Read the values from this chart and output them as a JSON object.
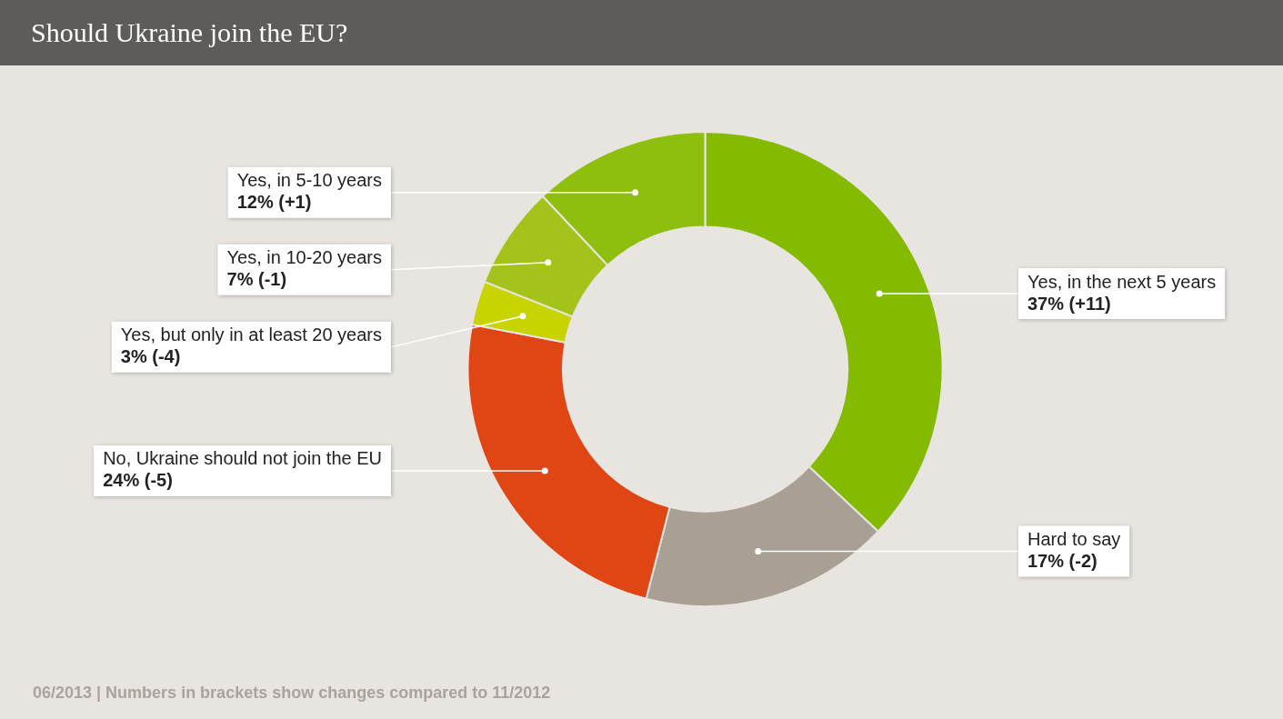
{
  "chart_data": {
    "type": "donut",
    "title": "Should Ukraine join the EU?",
    "categories": [
      "Yes, in the next 5 years",
      "Hard to say",
      "No, Ukraine should not join the EU",
      "Yes, but only in at least 20 years",
      "Yes, in 10-20 years",
      "Yes, in 5-10 years"
    ],
    "values": [
      37,
      17,
      24,
      3,
      7,
      12
    ],
    "colors": [
      "#84bb00",
      "#a89f95",
      "#e04514",
      "#c8d400",
      "#a3c21a",
      "#8fbf0e"
    ],
    "value_labels": [
      "37% (+11)",
      "17% (-2)",
      "24% (-5)",
      "3% (-4)",
      "7% (-1)",
      "12% (+1)"
    ],
    "annotations": [
      "06/2013 | Numbers in brackets show changes compared to 11/2012"
    ]
  }
}
